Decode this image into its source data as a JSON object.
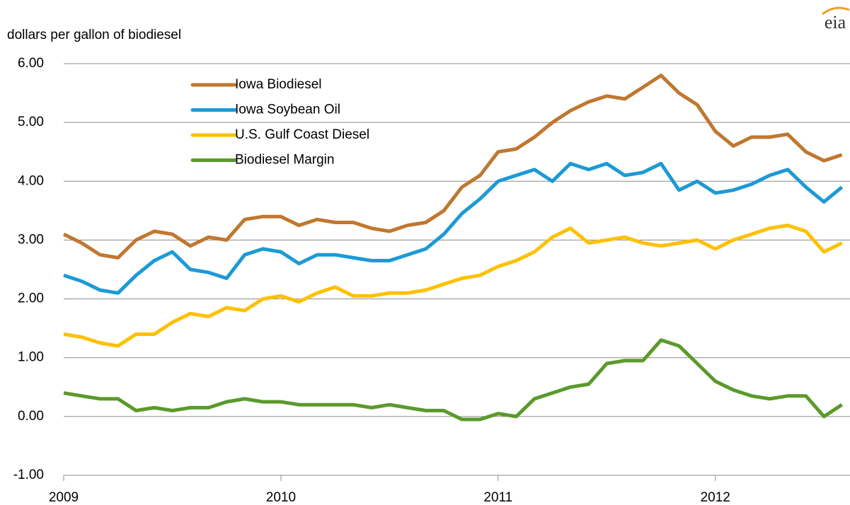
{
  "chart_data": {
    "type": "line",
    "y_label": "dollars per gallon of biodiesel",
    "logo": "eia",
    "x": [
      2009,
      2009.083,
      2009.167,
      2009.25,
      2009.333,
      2009.417,
      2009.5,
      2009.583,
      2009.667,
      2009.75,
      2009.833,
      2009.917,
      2010,
      2010.083,
      2010.167,
      2010.25,
      2010.333,
      2010.417,
      2010.5,
      2010.583,
      2010.667,
      2010.75,
      2010.833,
      2010.917,
      2011,
      2011.083,
      2011.167,
      2011.25,
      2011.333,
      2011.417,
      2011.5,
      2011.583,
      2011.667,
      2011.75,
      2011.833,
      2011.917,
      2012,
      2012.083,
      2012.167,
      2012.25,
      2012.333,
      2012.417,
      2012.5,
      2012.583
    ],
    "series": [
      {
        "name": "Iowa Biodiesel",
        "color": "#c0772f",
        "values": [
          3.1,
          2.95,
          2.75,
          2.7,
          3.0,
          3.15,
          3.1,
          2.9,
          3.05,
          3.0,
          3.35,
          3.4,
          3.4,
          3.25,
          3.35,
          3.3,
          3.3,
          3.2,
          3.15,
          3.25,
          3.3,
          3.5,
          3.9,
          4.1,
          4.5,
          4.55,
          4.75,
          5.0,
          5.2,
          5.35,
          5.45,
          5.4,
          5.6,
          5.8,
          5.5,
          5.3,
          4.85,
          4.6,
          4.75,
          4.75,
          4.8,
          4.5,
          4.35,
          4.45
        ]
      },
      {
        "name": "Iowa Soybean Oil",
        "color": "#1c9ad6",
        "values": [
          2.4,
          2.3,
          2.15,
          2.1,
          2.4,
          2.65,
          2.8,
          2.5,
          2.45,
          2.35,
          2.75,
          2.85,
          2.8,
          2.6,
          2.75,
          2.75,
          2.7,
          2.65,
          2.65,
          2.75,
          2.85,
          3.1,
          3.45,
          3.7,
          4.0,
          4.1,
          4.2,
          4.0,
          4.3,
          4.2,
          4.3,
          4.1,
          4.15,
          4.3,
          3.85,
          4.0,
          3.8,
          3.85,
          3.95,
          4.1,
          4.2,
          3.9,
          3.65,
          3.9
        ]
      },
      {
        "name": "U.S. Gulf Coast Diesel",
        "color": "#ffc000",
        "values": [
          1.4,
          1.35,
          1.25,
          1.2,
          1.4,
          1.4,
          1.6,
          1.75,
          1.7,
          1.85,
          1.8,
          2.0,
          2.05,
          1.95,
          2.1,
          2.2,
          2.05,
          2.05,
          2.1,
          2.1,
          2.15,
          2.25,
          2.35,
          2.4,
          2.55,
          2.65,
          2.8,
          3.05,
          3.2,
          2.95,
          3.0,
          3.05,
          2.95,
          2.9,
          2.95,
          3.0,
          2.85,
          3.0,
          3.1,
          3.2,
          3.25,
          3.15,
          2.8,
          2.95
        ]
      },
      {
        "name": "Biodiesel Margin",
        "color": "#5a9a2b",
        "values": [
          0.4,
          0.35,
          0.3,
          0.3,
          0.1,
          0.15,
          0.1,
          0.15,
          0.15,
          0.25,
          0.3,
          0.25,
          0.25,
          0.2,
          0.2,
          0.2,
          0.2,
          0.15,
          0.2,
          0.15,
          0.1,
          0.1,
          -0.05,
          -0.05,
          0.05,
          0.0,
          0.3,
          0.4,
          0.5,
          0.55,
          0.9,
          0.95,
          0.95,
          1.3,
          1.2,
          0.9,
          0.6,
          0.45,
          0.35,
          0.3,
          0.35,
          0.35,
          0.0,
          0.2
        ]
      }
    ],
    "xlim": [
      2009,
      2012.62
    ],
    "xticks": [
      2009,
      2010,
      2011,
      2012
    ],
    "ylim": [
      -1,
      6
    ],
    "yticks": [
      {
        "value": -1,
        "label": "-1.00"
      },
      {
        "value": 0,
        "label": "0.00"
      },
      {
        "value": 1,
        "label": "1.00"
      },
      {
        "value": 2,
        "label": "2.00"
      },
      {
        "value": 3,
        "label": "3.00"
      },
      {
        "value": 4,
        "label": "4.00"
      },
      {
        "value": 5,
        "label": "5.00"
      },
      {
        "value": 6,
        "label": "6.00"
      }
    ],
    "grid": true,
    "legend": "upper-left"
  }
}
